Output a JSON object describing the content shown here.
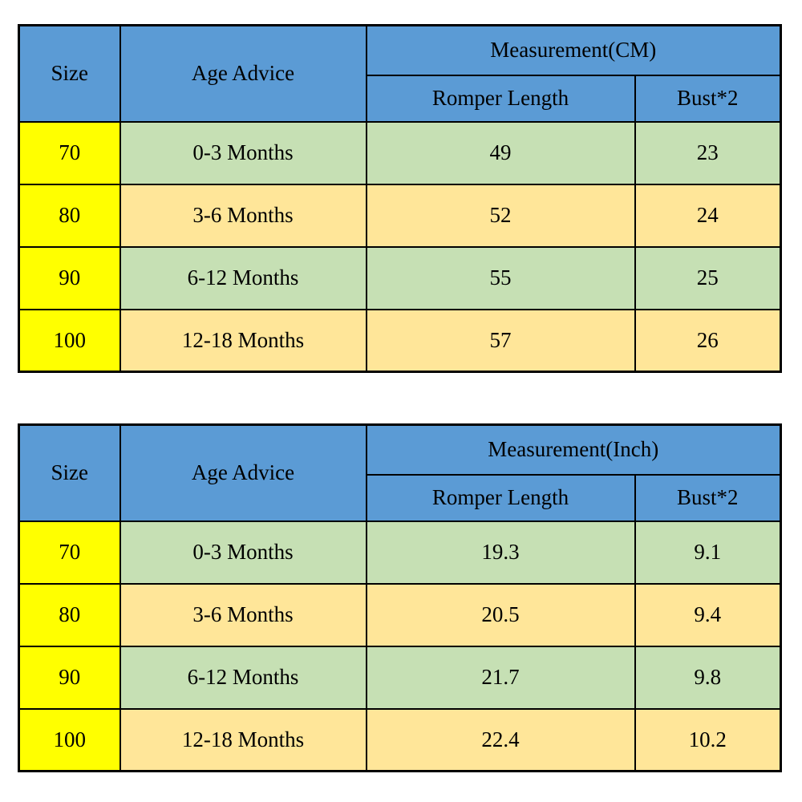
{
  "colors": {
    "header_blue": "#5B9BD5",
    "size_column_yellow": "#FFFF00",
    "row_green": "#C6E0B4",
    "row_tan": "#FFE699",
    "border": "#000000",
    "text": "#000000",
    "background": "#FFFFFF"
  },
  "chart_data": [
    {
      "type": "table",
      "unit": "Measurement(CM)",
      "headers": {
        "size": "Size",
        "age": "Age Advice",
        "length": "Romper Length",
        "bust": "Bust*2"
      },
      "rows": [
        {
          "size": "70",
          "age": "0-3 Months",
          "length": "49",
          "bust": "23"
        },
        {
          "size": "80",
          "age": "3-6 Months",
          "length": "52",
          "bust": "24"
        },
        {
          "size": "90",
          "age": "6-12 Months",
          "length": "55",
          "bust": "25"
        },
        {
          "size": "100",
          "age": "12-18 Months",
          "length": "57",
          "bust": "26"
        }
      ]
    },
    {
      "type": "table",
      "unit": "Measurement(Inch)",
      "headers": {
        "size": "Size",
        "age": "Age Advice",
        "length": "Romper Length",
        "bust": "Bust*2"
      },
      "rows": [
        {
          "size": "70",
          "age": "0-3 Months",
          "length": "19.3",
          "bust": "9.1"
        },
        {
          "size": "80",
          "age": "3-6 Months",
          "length": "20.5",
          "bust": "9.4"
        },
        {
          "size": "90",
          "age": "6-12 Months",
          "length": "21.7",
          "bust": "9.8"
        },
        {
          "size": "100",
          "age": "12-18 Months",
          "length": "22.4",
          "bust": "10.2"
        }
      ]
    }
  ]
}
